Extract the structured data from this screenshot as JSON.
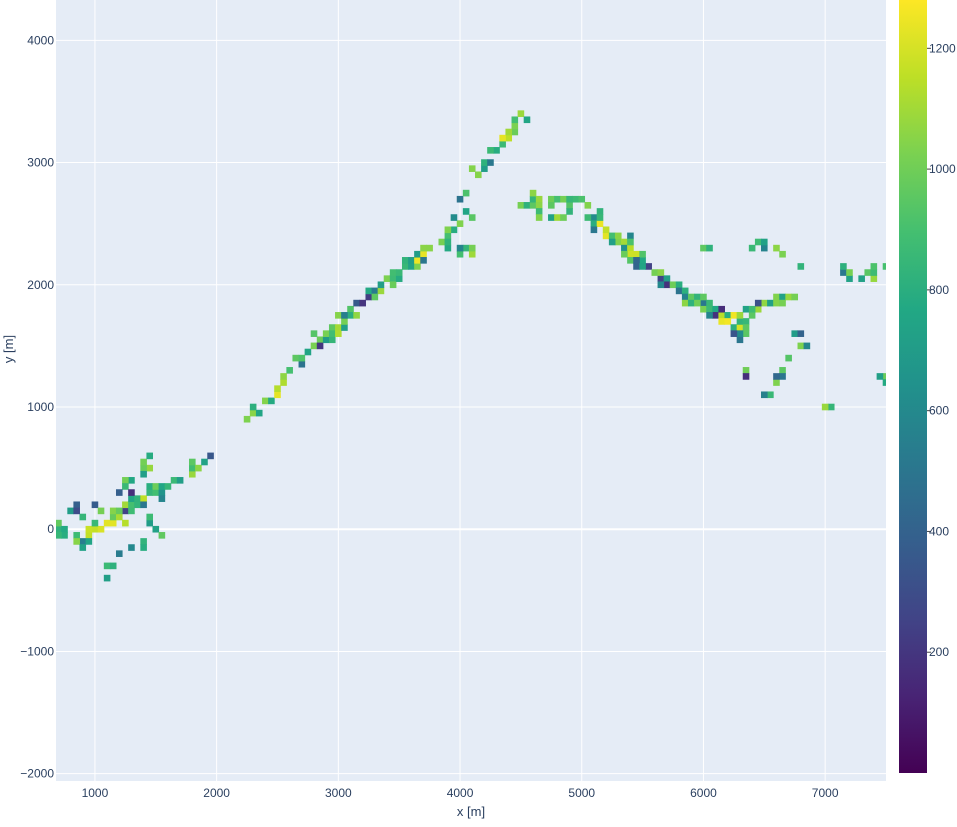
{
  "chart_data": {
    "type": "heatmap",
    "xlabel": "x [m]",
    "ylabel": "y [m]",
    "xlim": [
      680,
      7500
    ],
    "ylim": [
      -2060,
      4330
    ],
    "x_ticks": [
      1000,
      2000,
      3000,
      4000,
      5000,
      6000,
      7000
    ],
    "y_ticks": [
      -2000,
      -1000,
      0,
      1000,
      2000,
      3000,
      4000
    ],
    "colorbar": {
      "min": 0,
      "max": 1280,
      "ticks": [
        200,
        400,
        600,
        800,
        1000,
        1200
      ],
      "colorscale": "viridis"
    },
    "grid": true,
    "bin_size": [
      50,
      50
    ],
    "traces": [
      {
        "points": [
          [
            700,
            0
          ],
          [
            760,
            -30
          ],
          [
            840,
            -60
          ],
          [
            900,
            -90
          ],
          [
            940,
            -40
          ],
          [
            1000,
            -20
          ],
          [
            1060,
            20
          ],
          [
            1120,
            60
          ],
          [
            1180,
            100
          ],
          [
            1240,
            140
          ],
          [
            1300,
            180
          ],
          [
            1360,
            220
          ],
          [
            1420,
            260
          ],
          [
            1480,
            300
          ],
          [
            1540,
            320
          ],
          [
            1600,
            350
          ],
          [
            1660,
            380
          ],
          [
            1720,
            420
          ],
          [
            1780,
            470
          ],
          [
            1840,
            520
          ],
          [
            1900,
            570
          ]
        ],
        "widths": [
          2,
          2,
          2,
          2,
          2,
          2,
          2,
          2,
          2,
          2,
          2,
          2,
          2,
          2,
          2,
          2,
          1,
          1,
          1,
          1,
          1
        ],
        "hi": [
          3,
          4,
          5,
          6,
          7,
          8,
          12
        ]
      },
      {
        "points": [
          [
            2260,
            880
          ],
          [
            2330,
            960
          ],
          [
            2410,
            1040
          ],
          [
            2480,
            1120
          ],
          [
            2550,
            1200
          ],
          [
            2620,
            1280
          ],
          [
            2680,
            1360
          ],
          [
            2740,
            1440
          ],
          [
            2800,
            1500
          ],
          [
            2860,
            1550
          ],
          [
            2920,
            1610
          ],
          [
            2980,
            1660
          ],
          [
            3040,
            1720
          ],
          [
            3100,
            1780
          ],
          [
            3170,
            1840
          ],
          [
            3230,
            1880
          ],
          [
            3290,
            1930
          ],
          [
            3350,
            1980
          ],
          [
            3410,
            2030
          ],
          [
            3470,
            2080
          ],
          [
            3530,
            2130
          ],
          [
            3590,
            2170
          ],
          [
            3650,
            2210
          ],
          [
            3710,
            2240
          ],
          [
            3770,
            2280
          ],
          [
            3830,
            2340
          ],
          [
            3890,
            2400
          ],
          [
            3950,
            2460
          ],
          [
            4010,
            2520
          ],
          [
            4070,
            2580
          ]
        ],
        "widths": [
          1,
          1,
          1,
          1,
          1,
          1,
          1,
          2,
          2,
          2,
          2,
          2,
          2,
          2,
          2,
          2,
          2,
          2,
          2,
          2,
          2,
          2,
          2,
          2,
          1,
          1,
          1,
          1,
          1,
          1
        ],
        "hi": [
          3,
          4,
          11,
          22,
          23
        ]
      },
      {
        "points": [
          [
            4130,
            2900
          ],
          [
            4180,
            2960
          ],
          [
            4230,
            3020
          ],
          [
            4280,
            3080
          ],
          [
            4330,
            3140
          ],
          [
            4380,
            3200
          ],
          [
            4430,
            3260
          ],
          [
            4470,
            3320
          ],
          [
            4500,
            3380
          ]
        ],
        "widths": [
          1,
          1,
          1,
          1,
          1,
          1,
          1,
          1,
          1
        ],
        "hi": [
          5
        ]
      },
      {
        "points": [
          [
            4520,
            2640
          ],
          [
            4590,
            2660
          ],
          [
            4660,
            2680
          ],
          [
            4730,
            2690
          ],
          [
            4800,
            2700
          ],
          [
            4870,
            2710
          ],
          [
            4940,
            2720
          ],
          [
            5010,
            2700
          ],
          [
            5080,
            2560
          ],
          [
            5140,
            2480
          ],
          [
            5200,
            2420
          ],
          [
            5260,
            2380
          ],
          [
            5320,
            2330
          ],
          [
            5380,
            2280
          ],
          [
            5440,
            2230
          ],
          [
            5500,
            2180
          ],
          [
            5560,
            2130
          ],
          [
            5620,
            2090
          ],
          [
            5680,
            2050
          ],
          [
            5740,
            2000
          ],
          [
            5800,
            1960
          ],
          [
            5860,
            1920
          ],
          [
            5920,
            1880
          ],
          [
            5980,
            1840
          ],
          [
            6040,
            1800
          ],
          [
            6100,
            1770
          ],
          [
            6160,
            1740
          ],
          [
            6220,
            1700
          ],
          [
            6280,
            1660
          ],
          [
            6340,
            1700
          ],
          [
            6400,
            1750
          ],
          [
            6460,
            1800
          ],
          [
            6520,
            1850
          ],
          [
            6580,
            1880
          ],
          [
            6640,
            1900
          ],
          [
            6700,
            1900
          ],
          [
            6760,
            1900
          ]
        ],
        "widths": [
          1,
          1,
          1,
          1,
          1,
          1,
          1,
          1,
          2,
          2,
          2,
          2,
          2,
          2,
          2,
          2,
          2,
          2,
          2,
          2,
          2,
          2,
          2,
          2,
          2,
          2,
          2,
          2,
          2,
          2,
          2,
          2,
          2,
          2,
          2,
          1,
          1
        ],
        "hi": [
          9,
          10,
          11,
          12,
          13,
          14,
          26,
          27,
          28
        ]
      },
      {
        "points": [
          [
            6740,
            1600
          ],
          [
            6790,
            1520
          ],
          [
            6700,
            1400
          ],
          [
            6650,
            1300
          ],
          [
            6600,
            1200
          ],
          [
            6560,
            1120
          ]
        ],
        "widths": [
          1,
          1,
          1,
          1,
          1,
          1
        ],
        "hi": []
      },
      {
        "points": [
          [
            7150,
            2100
          ],
          [
            7220,
            2060
          ],
          [
            7290,
            2060
          ],
          [
            7360,
            2080
          ],
          [
            7420,
            2120
          ],
          [
            7480,
            2150
          ],
          [
            7480,
            1250
          ]
        ],
        "widths": [
          1,
          1,
          1,
          1,
          1,
          1,
          2
        ],
        "hi": []
      },
      {
        "points": [
          [
            5980,
            2300
          ],
          [
            6420,
            2300
          ],
          [
            6520,
            2300
          ],
          [
            6620,
            2280
          ],
          [
            6820,
            2150
          ],
          [
            5420,
            2380
          ],
          [
            7040,
            1000
          ],
          [
            6360,
            1320
          ],
          [
            6300,
            1550
          ],
          [
            6240,
            1620
          ]
        ],
        "widths": [
          1,
          1,
          1,
          1,
          1,
          1,
          1,
          1,
          1,
          1
        ],
        "hi": []
      },
      {
        "points": [
          [
            1100,
            -300
          ],
          [
            1120,
            -420
          ],
          [
            1200,
            -200
          ],
          [
            1300,
            -150
          ],
          [
            1380,
            -100
          ],
          [
            1440,
            40
          ],
          [
            1480,
            -10
          ],
          [
            1440,
            500
          ],
          [
            1420,
            560
          ],
          [
            1380,
            450
          ],
          [
            1300,
            400
          ],
          [
            1260,
            340
          ],
          [
            1220,
            300
          ],
          [
            1020,
            180
          ],
          [
            860,
            220
          ],
          [
            880,
            100
          ]
        ],
        "widths": [
          1,
          1,
          1,
          1,
          1,
          1,
          1,
          1,
          1,
          1,
          1,
          1,
          1,
          1,
          1,
          1
        ],
        "hi": []
      },
      {
        "points": [
          [
            4000,
            2700
          ],
          [
            4060,
            2760
          ],
          [
            4060,
            2280
          ],
          [
            3980,
            2280
          ],
          [
            4120,
            2260
          ]
        ],
        "widths": [
          1,
          1,
          1,
          1,
          1
        ],
        "hi": []
      },
      {
        "points": [
          [
            4580,
            2720
          ],
          [
            4660,
            2580
          ],
          [
            4760,
            2560
          ],
          [
            4860,
            2560
          ]
        ],
        "widths": [
          1,
          1,
          1,
          1
        ],
        "hi": []
      }
    ]
  }
}
